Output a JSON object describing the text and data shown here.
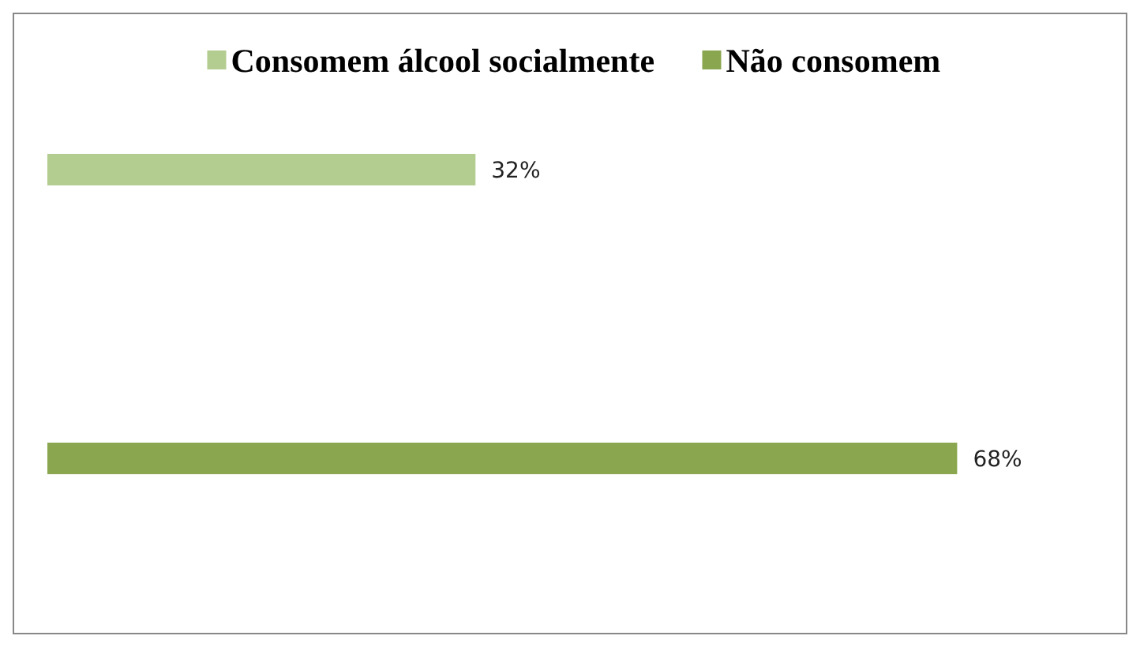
{
  "chart_data": {
    "type": "bar",
    "orientation": "horizontal",
    "stacked": true,
    "categories": [
      null,
      null
    ],
    "series": [
      {
        "name": "Consomem álcool socialmente",
        "color": "#b3cc8f",
        "values": [
          32,
          null
        ],
        "value_labels": [
          "32%",
          null
        ]
      },
      {
        "name": "Não consomem",
        "color": "#8aa64e",
        "values": [
          null,
          68
        ],
        "value_labels": [
          null,
          "68%"
        ]
      }
    ],
    "legend": "top"
  }
}
